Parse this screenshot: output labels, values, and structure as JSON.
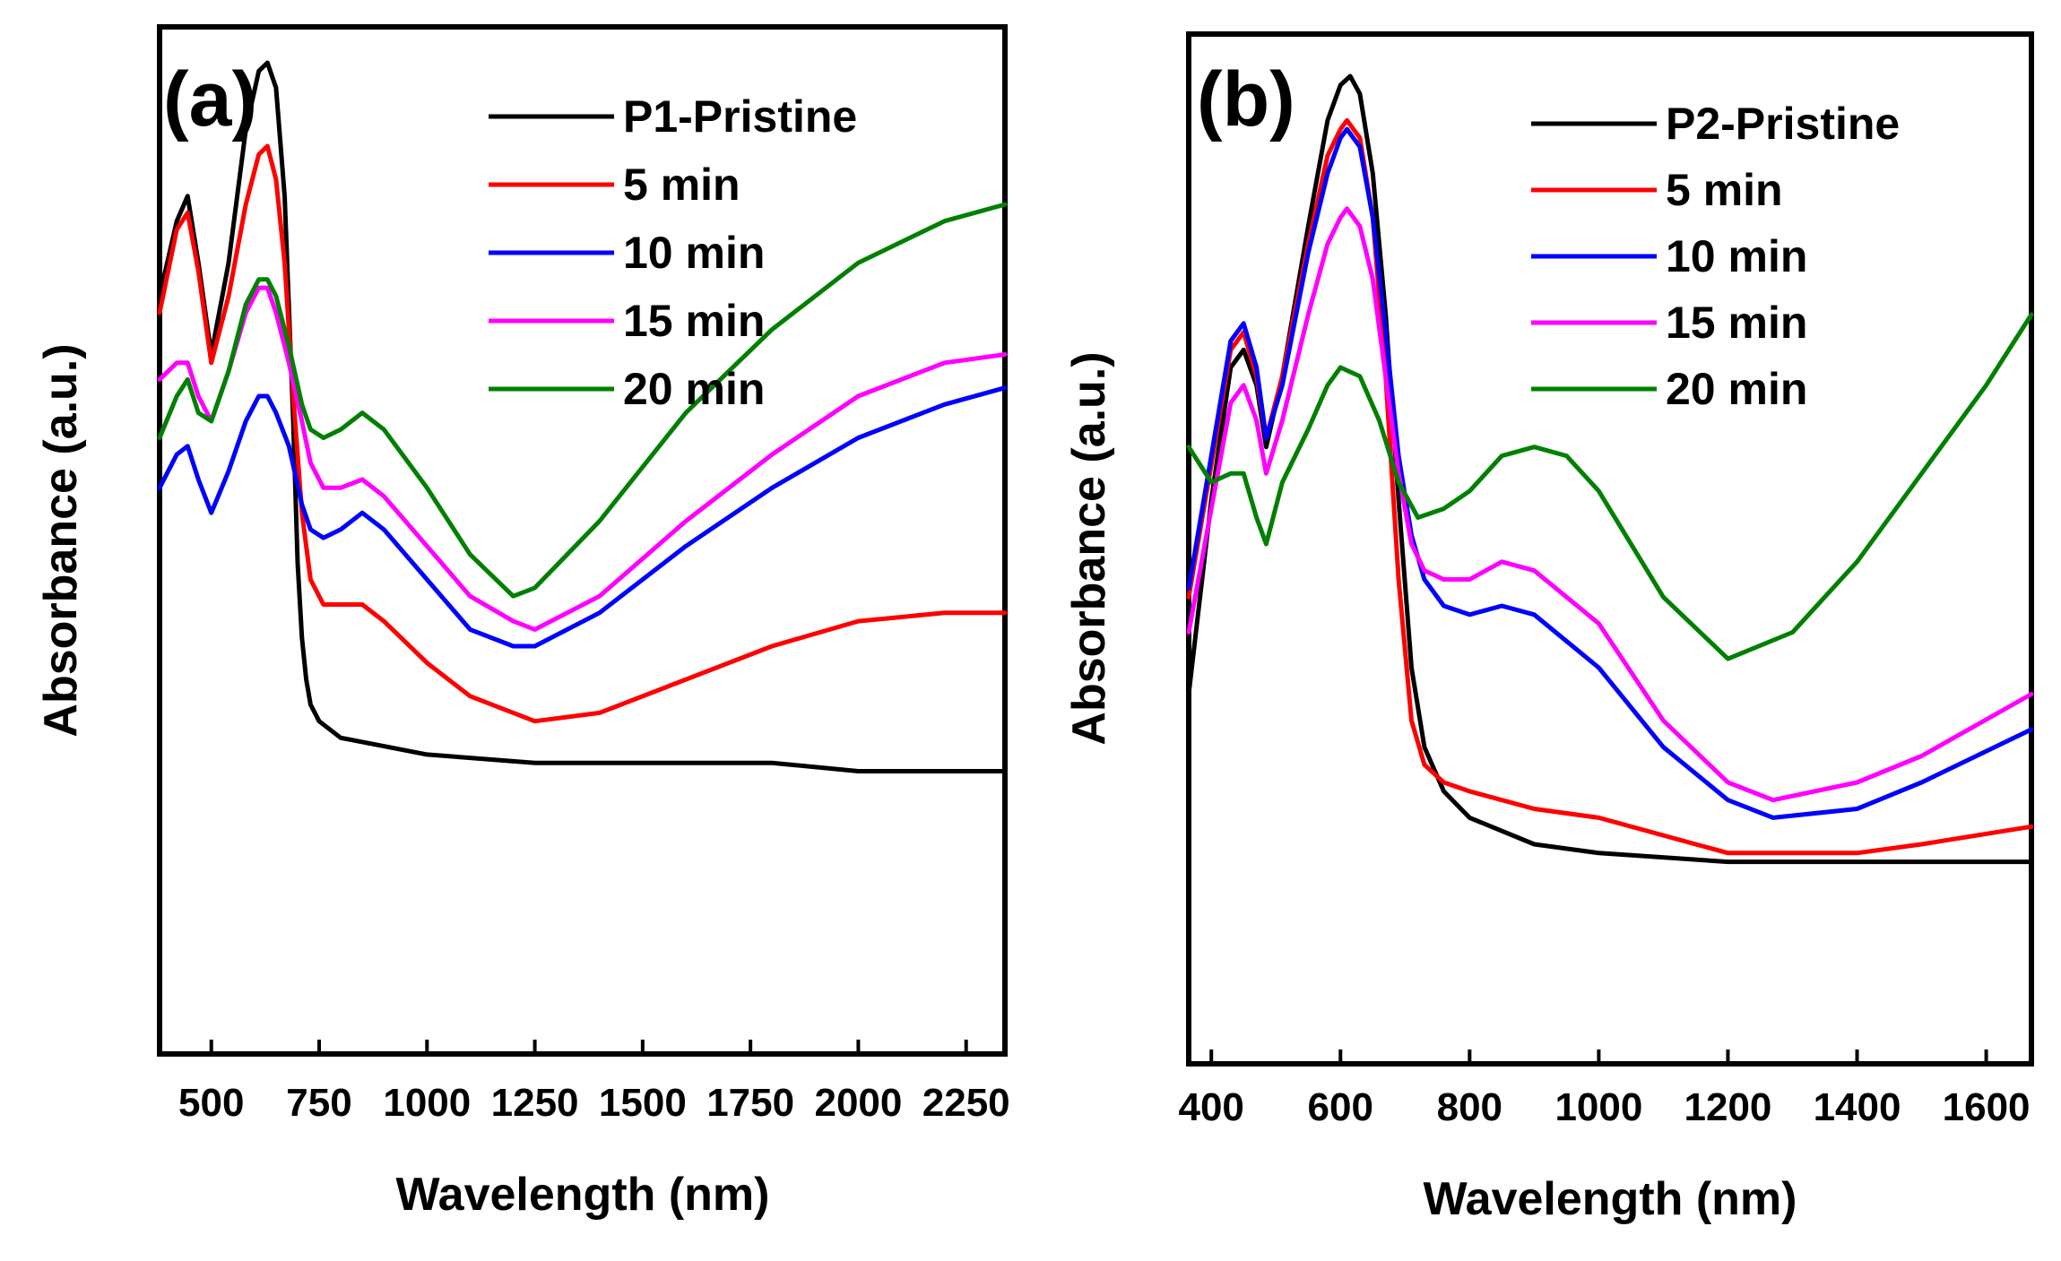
{
  "chart_data": [
    {
      "type": "line",
      "panel_label": "(a)",
      "xlabel": "Wavelength (nm)",
      "ylabel": "Absorbance (a.u.)",
      "xlim": [
        380,
        2340
      ],
      "ylim": [
        0,
        1
      ],
      "xticks": [
        500,
        750,
        1000,
        1250,
        1500,
        1750,
        2000,
        2250
      ],
      "xtick_labels": [
        "500",
        "750",
        "1000",
        "1250",
        "1500",
        "1750",
        "2000",
        "2250"
      ],
      "y_tick_labels_shown": false,
      "legend_position": "top-right",
      "series": [
        {
          "name": "P1-Pristine",
          "color": "#000000",
          "x": [
            380,
            420,
            445,
            470,
            500,
            540,
            580,
            610,
            630,
            650,
            670,
            690,
            700,
            710,
            720,
            730,
            750,
            800,
            900,
            1000,
            1250,
            1500,
            1800,
            2000,
            2340
          ],
          "y": [
            0.72,
            0.81,
            0.84,
            0.76,
            0.65,
            0.76,
            0.92,
            0.99,
            1.0,
            0.97,
            0.84,
            0.57,
            0.4,
            0.31,
            0.26,
            0.23,
            0.21,
            0.19,
            0.18,
            0.17,
            0.16,
            0.16,
            0.16,
            0.15,
            0.15
          ]
        },
        {
          "name": "5 min",
          "color": "#ff0000",
          "x": [
            380,
            420,
            445,
            470,
            500,
            540,
            580,
            610,
            630,
            650,
            670,
            690,
            710,
            730,
            760,
            800,
            850,
            900,
            1000,
            1100,
            1250,
            1400,
            1600,
            1800,
            2000,
            2200,
            2340
          ],
          "y": [
            0.7,
            0.8,
            0.82,
            0.75,
            0.64,
            0.72,
            0.83,
            0.89,
            0.9,
            0.86,
            0.76,
            0.6,
            0.46,
            0.38,
            0.35,
            0.35,
            0.35,
            0.33,
            0.28,
            0.24,
            0.21,
            0.22,
            0.26,
            0.3,
            0.33,
            0.34,
            0.34
          ]
        },
        {
          "name": "10 min",
          "color": "#0000ff",
          "x": [
            380,
            420,
            445,
            470,
            500,
            540,
            580,
            610,
            630,
            650,
            680,
            710,
            730,
            760,
            800,
            850,
            900,
            1000,
            1100,
            1200,
            1250,
            1400,
            1600,
            1800,
            2000,
            2200,
            2340
          ],
          "y": [
            0.49,
            0.53,
            0.54,
            0.5,
            0.46,
            0.51,
            0.57,
            0.6,
            0.6,
            0.58,
            0.54,
            0.47,
            0.44,
            0.43,
            0.44,
            0.46,
            0.44,
            0.38,
            0.32,
            0.3,
            0.3,
            0.34,
            0.42,
            0.49,
            0.55,
            0.59,
            0.61
          ]
        },
        {
          "name": "15 min",
          "color": "#ff00ff",
          "x": [
            380,
            420,
            445,
            470,
            500,
            540,
            580,
            610,
            630,
            650,
            680,
            710,
            730,
            760,
            800,
            850,
            900,
            1000,
            1100,
            1200,
            1250,
            1400,
            1600,
            1800,
            2000,
            2200,
            2340
          ],
          "y": [
            0.62,
            0.64,
            0.64,
            0.6,
            0.57,
            0.63,
            0.7,
            0.73,
            0.73,
            0.7,
            0.64,
            0.57,
            0.52,
            0.49,
            0.49,
            0.5,
            0.48,
            0.42,
            0.36,
            0.33,
            0.32,
            0.36,
            0.45,
            0.53,
            0.6,
            0.64,
            0.65
          ]
        },
        {
          "name": "20 min",
          "color": "#008000",
          "x": [
            380,
            420,
            445,
            470,
            500,
            540,
            580,
            610,
            630,
            650,
            680,
            710,
            730,
            760,
            800,
            850,
            900,
            1000,
            1100,
            1200,
            1250,
            1400,
            1600,
            1800,
            2000,
            2200,
            2340
          ],
          "y": [
            0.55,
            0.6,
            0.62,
            0.58,
            0.57,
            0.63,
            0.71,
            0.74,
            0.74,
            0.72,
            0.66,
            0.59,
            0.56,
            0.55,
            0.56,
            0.58,
            0.56,
            0.49,
            0.41,
            0.36,
            0.37,
            0.45,
            0.58,
            0.68,
            0.76,
            0.81,
            0.83
          ]
        }
      ]
    },
    {
      "type": "line",
      "panel_label": "(b)",
      "xlabel": "Wavelength (nm)",
      "ylabel": "Absorbance (a.u.)",
      "xlim": [
        365,
        1670
      ],
      "ylim": [
        0,
        1
      ],
      "xticks": [
        400,
        600,
        800,
        1000,
        1200,
        1400,
        1600
      ],
      "xtick_labels": [
        "400",
        "600",
        "800",
        "1000",
        "1200",
        "1400",
        "1600"
      ],
      "y_tick_labels_shown": false,
      "legend_position": "top-right",
      "series": [
        {
          "name": "P2-Pristine",
          "color": "#000000",
          "x": [
            365,
            400,
            430,
            450,
            470,
            485,
            510,
            550,
            580,
            600,
            615,
            630,
            650,
            670,
            690,
            710,
            730,
            760,
            800,
            900,
            1000,
            1200,
            1400,
            1670
          ],
          "y": [
            0.3,
            0.52,
            0.67,
            0.69,
            0.65,
            0.58,
            0.66,
            0.83,
            0.95,
            0.99,
            1.0,
            0.98,
            0.89,
            0.73,
            0.52,
            0.33,
            0.24,
            0.19,
            0.16,
            0.13,
            0.12,
            0.11,
            0.11,
            0.11
          ]
        },
        {
          "name": "5 min",
          "color": "#ff0000",
          "x": [
            365,
            400,
            430,
            450,
            470,
            485,
            510,
            550,
            580,
            600,
            610,
            630,
            650,
            670,
            690,
            710,
            730,
            760,
            800,
            900,
            1000,
            1100,
            1200,
            1300,
            1400,
            1500,
            1670
          ],
          "y": [
            0.41,
            0.56,
            0.69,
            0.71,
            0.66,
            0.59,
            0.66,
            0.81,
            0.91,
            0.94,
            0.95,
            0.93,
            0.84,
            0.66,
            0.43,
            0.27,
            0.22,
            0.2,
            0.19,
            0.17,
            0.16,
            0.14,
            0.12,
            0.12,
            0.12,
            0.13,
            0.15
          ]
        },
        {
          "name": "10 min",
          "color": "#0000ff",
          "x": [
            365,
            400,
            430,
            450,
            470,
            485,
            510,
            550,
            580,
            600,
            610,
            630,
            650,
            670,
            690,
            710,
            730,
            760,
            800,
            850,
            900,
            1000,
            1100,
            1200,
            1270,
            1400,
            1500,
            1670
          ],
          "y": [
            0.42,
            0.57,
            0.7,
            0.72,
            0.67,
            0.59,
            0.65,
            0.8,
            0.89,
            0.93,
            0.94,
            0.92,
            0.84,
            0.71,
            0.57,
            0.48,
            0.43,
            0.4,
            0.39,
            0.4,
            0.39,
            0.33,
            0.24,
            0.18,
            0.16,
            0.17,
            0.2,
            0.26
          ]
        },
        {
          "name": "15 min",
          "color": "#ff00ff",
          "x": [
            365,
            400,
            430,
            450,
            470,
            485,
            510,
            550,
            580,
            600,
            610,
            630,
            650,
            670,
            690,
            710,
            730,
            760,
            800,
            850,
            900,
            1000,
            1100,
            1200,
            1270,
            1400,
            1500,
            1670
          ],
          "y": [
            0.37,
            0.51,
            0.63,
            0.65,
            0.61,
            0.55,
            0.61,
            0.73,
            0.81,
            0.84,
            0.85,
            0.83,
            0.77,
            0.66,
            0.55,
            0.47,
            0.44,
            0.43,
            0.43,
            0.45,
            0.44,
            0.38,
            0.27,
            0.2,
            0.18,
            0.2,
            0.23,
            0.3
          ]
        },
        {
          "name": "20 min",
          "color": "#008000",
          "x": [
            365,
            400,
            430,
            450,
            470,
            485,
            510,
            550,
            580,
            600,
            630,
            660,
            690,
            720,
            760,
            800,
            850,
            900,
            950,
            1000,
            1100,
            1200,
            1300,
            1400,
            1500,
            1600,
            1670
          ],
          "y": [
            0.58,
            0.54,
            0.55,
            0.55,
            0.5,
            0.47,
            0.54,
            0.6,
            0.65,
            0.67,
            0.66,
            0.61,
            0.54,
            0.5,
            0.51,
            0.53,
            0.57,
            0.58,
            0.57,
            0.53,
            0.41,
            0.34,
            0.37,
            0.45,
            0.55,
            0.65,
            0.73
          ]
        }
      ]
    }
  ]
}
